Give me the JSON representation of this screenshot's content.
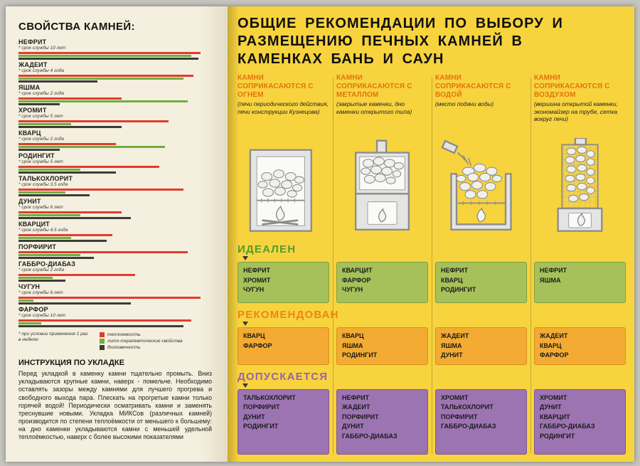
{
  "page": {
    "left": {
      "title": "СВОЙСТВА КАМНЕЙ:",
      "stones": [
        {
          "name": "НЕФРИТ",
          "life": "* срок службы 10 лет"
        },
        {
          "name": "ЖАДЕИТ",
          "life": "* срок службы 4 года"
        },
        {
          "name": "ЯШМА",
          "life": "* срок службы 2 года"
        },
        {
          "name": "ХРОМИТ",
          "life": "* срок службы 5 лет"
        },
        {
          "name": "КВАРЦ",
          "life": "* срок службы 2 года"
        },
        {
          "name": "РОДИНГИТ",
          "life": "* срок службы 5 лет"
        },
        {
          "name": "ТАЛЬКОХЛОРИТ",
          "life": "* срок службы 3.5 года"
        },
        {
          "name": "ДУНИТ",
          "life": "* срок службы 6 лет"
        },
        {
          "name": "КВАРЦИТ",
          "life": "* срок службы 4.5 года"
        },
        {
          "name": "ПОРФИРИТ",
          "life": ""
        },
        {
          "name": "ГАББРО-ДИАБАЗ",
          "life": "* срок службы 2 года"
        },
        {
          "name": "ЧУГУН",
          "life": "* срок службы 6 лет"
        },
        {
          "name": "ФАРФОР",
          "life": "* срок службы 10 лет"
        }
      ],
      "footnote": "* при условии применения 1 раз в неделю",
      "legend": [
        {
          "label": "теплоемкость",
          "color": "#e23b30"
        },
        {
          "label": "лито-терапевтические свойства",
          "color": "#6fae3e"
        },
        {
          "label": "долговечность",
          "color": "#3c3c38"
        }
      ],
      "instruction_title": "ИНСТРУКЦИЯ ПО УКЛАДКЕ",
      "instruction_text": "Перед укладкой в каменку камни тщательно промыть. Вниз укладываются крупные камни, наверх - помельче. Необходимо оставлять зазоры между камнями для лучшего прогрева и свободного выхода пара. Плескать на прогретые камни только горячей водой! Периодически осматривать камни и заменять треснувшие новыми. Укладка МИКСов (различных камней) производится по степени теплоёмкости от меньшего к большему: на дно каменки укладываются камни с меньшей удельной теплоёмкостью, наверх с более высокими показателями"
    },
    "right": {
      "title_lines": [
        "ОБЩИЕ РЕКОМЕНДАЦИИ ПО ВЫБОРУ И",
        "РАЗМЕЩЕНИЮ ПЕЧНЫХ КАМНЕЙ В",
        "КАМЕНКАХ БАНЬ И САУН"
      ],
      "columns": [
        {
          "heading": "КАМНИ СОПРИКАСАЮТСЯ С ОГНЕМ",
          "note": "(печи периодического действия, печи конструкции Кузнецова)"
        },
        {
          "heading": "КАМНИ СОПРИКАСАЮТСЯ С МЕТАЛЛОМ",
          "note": "(закрытые каменки, дно каменки открытого типа)"
        },
        {
          "heading": "КАМНИ СОПРИКАСАЮТСЯ С ВОДОЙ",
          "note": "(место подачи воды)"
        },
        {
          "heading": "КАМНИ СОПРИКАСАЮТСЯ С ВОЗДУХОМ",
          "note": "(вершина открытой каменки, экономайзер на трубе, сетка вокруг печи)"
        }
      ],
      "bands": [
        {
          "label": "ИДЕАЛЕН",
          "header_color": "#4e9e2e",
          "cell_bg": "#a6c159",
          "cell_border": "#7fa03c",
          "cells": [
            [
              "НЕФРИТ",
              "ХРОМИТ",
              "ЧУГУН"
            ],
            [
              "КВАРЦИТ",
              "ФАРФОР",
              "ЧУГУН"
            ],
            [
              "НЕФРИТ",
              "КВАРЦ",
              "РОДИНГИТ"
            ],
            [
              "НЕФРИТ",
              "ЯШМА"
            ]
          ]
        },
        {
          "label": "РЕКОМЕНДОВАН",
          "header_color": "#ef8415",
          "cell_bg": "#f3ab33",
          "cell_border": "#d98f1f",
          "cells": [
            [
              "КВАРЦ",
              "ФАРФОР"
            ],
            [
              "КВАРЦ",
              "ЯШМА",
              "РОДИНГИТ"
            ],
            [
              "ЖАДЕИТ",
              "ЯШМА",
              "ДУНИТ"
            ],
            [
              "ЖАДЕИТ",
              "КВАРЦ",
              "ФАРФОР"
            ]
          ]
        },
        {
          "label": "ДОПУСКАЕТСЯ",
          "header_color": "#9a62ad",
          "cell_bg": "#9d74b2",
          "cell_border": "#7d5595",
          "cells": [
            [
              "ТАЛЬКОХЛОРИТ",
              "ПОРФИРИТ",
              "ДУНИТ",
              "РОДИНГИТ"
            ],
            [
              "НЕФРИТ",
              "ЖАДЕИТ",
              "ПОРФИРИТ",
              "ДУНИТ",
              "ГАББРО-ДИАБАЗ"
            ],
            [
              "ХРОМИТ",
              "ТАЛЬКОХЛОРИТ",
              "ПОРФИРИТ",
              "ГАББРО-ДИАБАЗ"
            ],
            [
              "ХРОМИТ",
              "ДУНИТ",
              "КВАРЦИТ",
              "ГАББРО-ДИАБАЗ",
              "РОДИНГИТ"
            ]
          ]
        }
      ]
    }
  },
  "chart_data": {
    "type": "bar",
    "orientation": "horizontal",
    "title": "СВОЙСТВА КАМНЕЙ:",
    "categories": [
      "НЕФРИТ",
      "ЖАДЕИТ",
      "ЯШМА",
      "ХРОМИТ",
      "КВАРЦ",
      "РОДИНГИТ",
      "ТАЛЬКОХЛОРИТ",
      "ДУНИТ",
      "КВАРЦИТ",
      "ПОРФИРИТ",
      "ГАББРО-ДИАБАЗ",
      "ЧУГУН",
      "ФАРФОР"
    ],
    "series": [
      {
        "name": "теплоемкость",
        "color": "#e23b30",
        "values": [
          9.7,
          9.3,
          5.5,
          8.0,
          5.2,
          7.5,
          8.8,
          5.5,
          5.0,
          9.0,
          6.2,
          9.7,
          9.2
        ]
      },
      {
        "name": "лито-терапевтические свойства",
        "color": "#6fae3e",
        "values": [
          9.2,
          8.8,
          9.0,
          2.8,
          7.8,
          3.3,
          2.5,
          3.3,
          2.8,
          3.3,
          1.8,
          0.8,
          1.2
        ]
      },
      {
        "name": "долговечность",
        "color": "#3c3c38",
        "values": [
          9.6,
          4.2,
          2.2,
          5.5,
          2.2,
          5.2,
          3.8,
          6.0,
          4.7,
          4.0,
          2.5,
          6.0,
          8.8
        ]
      }
    ],
    "xlim": [
      0,
      10
    ],
    "legend_position": "below-chart",
    "grid": false
  }
}
